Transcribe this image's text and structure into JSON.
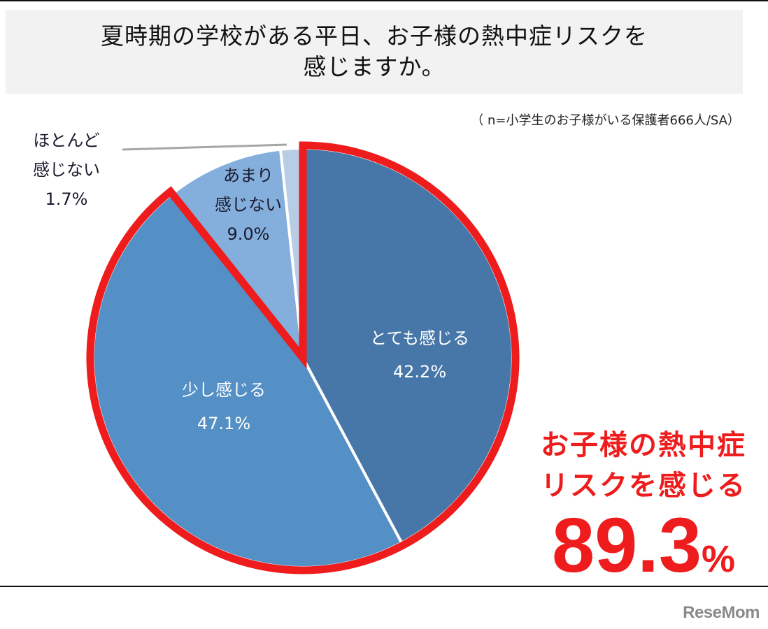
{
  "title": {
    "line1": "夏時期の学校がある平日、お子様の熱中症リスクを",
    "line2": "感じますか。"
  },
  "note": "（ n=小学生のお子様がいる保護者666人/SA）",
  "labels": {
    "very": {
      "name": "とても感じる",
      "value": "42.2%"
    },
    "somewhat": {
      "name": "少し感じる",
      "value": "47.1%"
    },
    "notmuch": {
      "name1": "あまり",
      "name2": "感じない",
      "value": "9.0%"
    },
    "hardly": {
      "name1": "ほとんど",
      "name2": "感じない",
      "value": "1.7%"
    }
  },
  "highlight": {
    "line1": "お子様の熱中症",
    "line2": "リスクを感じる",
    "value": "89.3",
    "unit": "%"
  },
  "logo": "ReseMom",
  "colors": {
    "very": "#4677A8",
    "somewhat": "#548FC6",
    "notmuch": "#84AEDB",
    "hardly": "#B7CCE5",
    "outline": "#EE1C1C"
  },
  "chart_data": {
    "type": "pie",
    "title": "夏時期の学校がある平日、お子様の熱中症リスクを感じますか。",
    "subtitle": "n=小学生のお子様がいる保護者666人/SA",
    "categories": [
      "とても感じる",
      "少し感じる",
      "あまり感じない",
      "ほとんど感じない"
    ],
    "values": [
      42.2,
      47.1,
      9.0,
      1.7
    ],
    "start_angle": "top, clockwise",
    "annotations": [
      {
        "text": "お子様の熱中症リスクを感じる 89.3%",
        "covers": [
          "とても感じる",
          "少し感じる"
        ]
      }
    ]
  }
}
